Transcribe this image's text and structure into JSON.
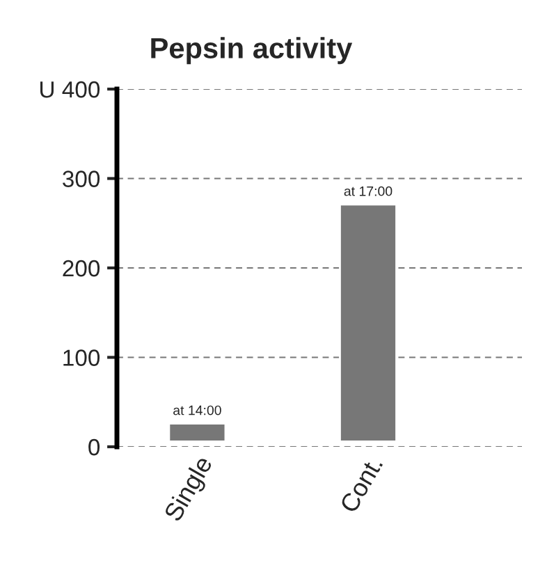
{
  "chart_data": {
    "type": "bar",
    "title": "Pepsin activity",
    "categories": [
      "Single",
      "Cont."
    ],
    "base": [
      6,
      6
    ],
    "values": [
      20,
      265
    ],
    "color": "#777777",
    "ylim": [
      0,
      400
    ],
    "yticks": [
      0,
      100,
      200,
      300,
      {
        "value": 400,
        "label": "U 400"
      }
    ],
    "grid": "y",
    "annotations": [
      {
        "text": "at 14:00",
        "x": "Single",
        "y": 26
      },
      {
        "text": "at 17:00",
        "x": "Cont.",
        "y": 271
      }
    ]
  }
}
